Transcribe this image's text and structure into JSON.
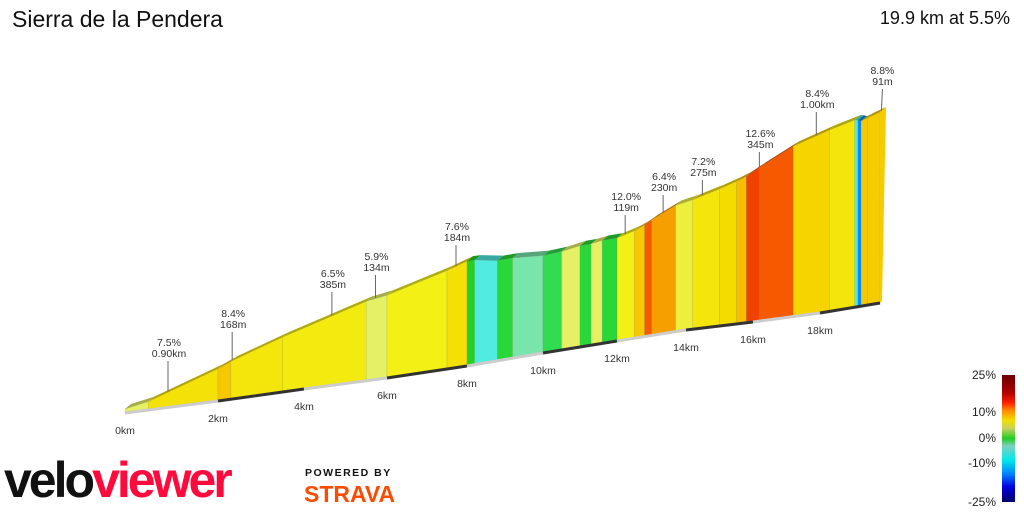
{
  "header": {
    "title": "Sierra de la Pendera",
    "summary": "19.9 km at 5.5%"
  },
  "chart_data": {
    "type": "area",
    "title": "Sierra de la Pendera",
    "subtitle": "19.9 km at 5.5%",
    "x_unit": "km",
    "xlim": [
      0,
      19.9
    ],
    "x_ticks": [
      "0km",
      "2km",
      "4km",
      "6km",
      "8km",
      "10km",
      "12km",
      "14km",
      "16km",
      "18km"
    ],
    "segments": [
      {
        "start": 0,
        "end": 0.5,
        "gradient": 4
      },
      {
        "start": 0.5,
        "end": 2.0,
        "gradient": 7.5
      },
      {
        "start": 2.0,
        "end": 2.3,
        "gradient": 9
      },
      {
        "start": 2.3,
        "end": 3.5,
        "gradient": 7
      },
      {
        "start": 3.5,
        "end": 5.5,
        "gradient": 6.5
      },
      {
        "start": 5.5,
        "end": 6.0,
        "gradient": 4
      },
      {
        "start": 6.0,
        "end": 7.5,
        "gradient": 6
      },
      {
        "start": 7.5,
        "end": 8.0,
        "gradient": 7.6
      },
      {
        "start": 8.0,
        "end": 8.2,
        "gradient": 0
      },
      {
        "start": 8.2,
        "end": 8.8,
        "gradient": -3
      },
      {
        "start": 8.8,
        "end": 9.2,
        "gradient": 1
      },
      {
        "start": 9.2,
        "end": 10.0,
        "gradient": -1
      },
      {
        "start": 10.0,
        "end": 10.5,
        "gradient": 2
      },
      {
        "start": 10.5,
        "end": 11.0,
        "gradient": 4
      },
      {
        "start": 11.0,
        "end": 11.3,
        "gradient": 1
      },
      {
        "start": 11.3,
        "end": 11.6,
        "gradient": 4
      },
      {
        "start": 11.6,
        "end": 12.0,
        "gradient": 1
      },
      {
        "start": 12.0,
        "end": 12.5,
        "gradient": 6
      },
      {
        "start": 12.5,
        "end": 12.8,
        "gradient": 9
      },
      {
        "start": 12.8,
        "end": 13.0,
        "gradient": 12
      },
      {
        "start": 13.0,
        "end": 13.7,
        "gradient": 10
      },
      {
        "start": 13.7,
        "end": 14.2,
        "gradient": 5
      },
      {
        "start": 14.2,
        "end": 15.0,
        "gradient": 7
      },
      {
        "start": 15.0,
        "end": 15.5,
        "gradient": 8
      },
      {
        "start": 15.5,
        "end": 15.8,
        "gradient": 9.5
      },
      {
        "start": 15.8,
        "end": 16.2,
        "gradient": 12.6
      },
      {
        "start": 16.2,
        "end": 17.2,
        "gradient": 12
      },
      {
        "start": 17.2,
        "end": 18.3,
        "gradient": 8.4
      },
      {
        "start": 18.3,
        "end": 19.1,
        "gradient": 7
      },
      {
        "start": 19.1,
        "end": 19.2,
        "gradient": -3
      },
      {
        "start": 19.2,
        "end": 19.3,
        "gradient": -6
      },
      {
        "start": 19.3,
        "end": 19.5,
        "gradient": 9
      },
      {
        "start": 19.5,
        "end": 19.9,
        "gradient": 8.8
      }
    ],
    "annotations": [
      {
        "km": 0.86,
        "gradient": "7.5%",
        "length": "0.90km"
      },
      {
        "km": 2.26,
        "gradient": "8.4%",
        "length": "168m"
      },
      {
        "km": 4.6,
        "gradient": "6.5%",
        "length": "385m"
      },
      {
        "km": 5.65,
        "gradient": "5.9%",
        "length": "134m"
      },
      {
        "km": 7.65,
        "gradient": "7.6%",
        "length": "184m"
      },
      {
        "km": 12.15,
        "gradient": "12.0%",
        "length": "119m"
      },
      {
        "km": 13.25,
        "gradient": "6.4%",
        "length": "230m"
      },
      {
        "km": 14.4,
        "gradient": "7.2%",
        "length": "275m"
      },
      {
        "km": 16.1,
        "gradient": "12.6%",
        "length": "345m"
      },
      {
        "km": 17.8,
        "gradient": "8.4%",
        "length": "1.00km"
      },
      {
        "km": 19.85,
        "gradient": "8.8%",
        "length": "91m"
      }
    ],
    "legend": {
      "title": "",
      "ticks": [
        "25%",
        "10%",
        "0%",
        "-10%",
        "-25%"
      ],
      "range": [
        -25,
        25
      ],
      "placement": "bottom-right"
    }
  },
  "branding": {
    "logo_part1": "velo",
    "logo_part2": "viewer",
    "powered_by": "POWERED BY",
    "strava": "STRAVA",
    "strava_color": "#fc4c02",
    "logo_color": "#ff0a3c"
  }
}
